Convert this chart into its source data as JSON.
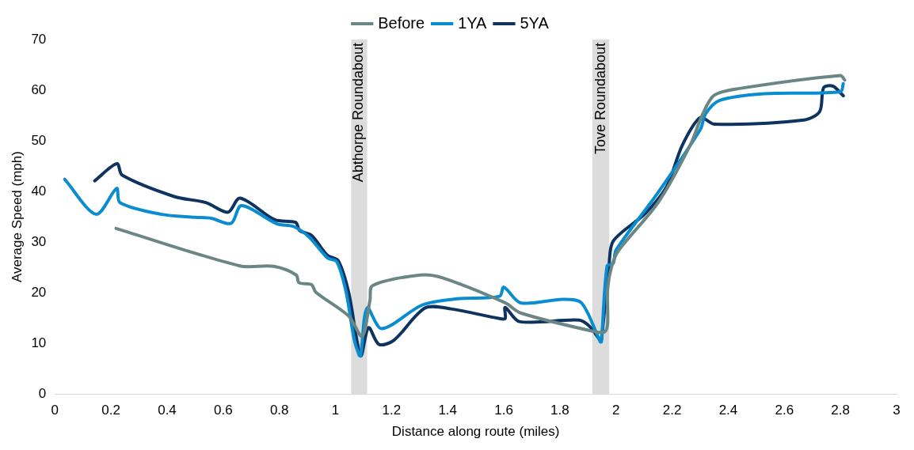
{
  "chart_data": {
    "type": "line",
    "xlabel": "Distance along route (miles)",
    "ylabel": "Average Speed (mph)",
    "xlim": [
      0,
      3
    ],
    "xticks": [
      0,
      0.2,
      0.4,
      0.6,
      0.8,
      1,
      1.2,
      1.4,
      1.6,
      1.8,
      2,
      2.2,
      2.4,
      2.6,
      2.8,
      3
    ],
    "ylim": [
      0,
      70
    ],
    "yticks": [
      0,
      10,
      20,
      30,
      40,
      50,
      60,
      70
    ],
    "grid": false,
    "legend": "top",
    "marker": "none",
    "line_style": "solid",
    "bands": [
      {
        "axis": "x",
        "from": 1.056,
        "to": 1.113,
        "label": "Abthorpe Roundabout",
        "color": "#dcdcdc"
      },
      {
        "axis": "x",
        "from": 1.916,
        "to": 1.976,
        "label": "Tove Roundabout",
        "color": "#dcdcdc"
      }
    ],
    "series": [
      {
        "name": "Before",
        "color": "#6b8785",
        "x": [
          0.218,
          0.66,
          0.78,
          0.86,
          0.87,
          0.915,
          0.93,
          1.047,
          1.095,
          1.123,
          1.132,
          1.302,
          1.378,
          1.605,
          1.66,
          1.925,
          1.96,
          1.97,
          1.97,
          1.985,
          2.01,
          2.15,
          2.264,
          2.31,
          2.35,
          2.435,
          2.8,
          2.815
        ],
        "values": [
          32.7,
          25.3,
          25.2,
          23.5,
          22,
          21.6,
          20.1,
          15.4,
          11.4,
          18.5,
          21.4,
          23.5,
          23,
          18,
          16,
          12.3,
          12.3,
          13.9,
          20.7,
          25.3,
          28.4,
          37.8,
          49.1,
          55.4,
          59,
          60.3,
          62.9,
          62
        ]
      },
      {
        "name": "1YA",
        "color": "#0a8dd0",
        "x": [
          0.035,
          0.147,
          0.22,
          0.232,
          0.377,
          0.5,
          0.557,
          0.628,
          0.665,
          0.792,
          0.85,
          0.906,
          0.971,
          1.005,
          1.038,
          1.067,
          1.085,
          1.09,
          1.113,
          1.165,
          1.31,
          1.434,
          1.585,
          1.6,
          1.66,
          1.81,
          1.877,
          1.944,
          1.948,
          1.968,
          1.99,
          2,
          2.15,
          2.3,
          2.32,
          2.37,
          2.528,
          2.8,
          2.81
        ],
        "values": [
          42.4,
          35.5,
          40.6,
          37.8,
          35.5,
          34.9,
          34.7,
          33.7,
          37.2,
          33.6,
          33.1,
          31,
          26.9,
          26.1,
          20.1,
          10.7,
          7.6,
          7.5,
          17,
          12.9,
          17.6,
          18.8,
          19.3,
          21.1,
          18,
          18.7,
          18,
          10.3,
          10.3,
          25.3,
          25.8,
          28.4,
          39.8,
          52.2,
          55.4,
          58,
          59.3,
          59.7,
          61.3
        ]
      },
      {
        "name": "5YA",
        "color": "#0e3361",
        "x": [
          0.142,
          0.221,
          0.24,
          0.425,
          0.538,
          0.617,
          0.66,
          0.784,
          0.858,
          0.872,
          0.915,
          0.971,
          1.01,
          1.047,
          1.09,
          1.118,
          1.155,
          1.208,
          1.32,
          1.413,
          1.585,
          1.605,
          1.605,
          1.656,
          1.868,
          1.905,
          1.944,
          1.948,
          1.975,
          1.99,
          2.103,
          2.18,
          2.236,
          2.3,
          2.35,
          2.67,
          2.726,
          2.74,
          2.773,
          2.81
        ],
        "values": [
          42.1,
          45.5,
          43.2,
          39,
          37.8,
          35.9,
          38.7,
          34.4,
          33.9,
          32.3,
          31.3,
          27.4,
          26.3,
          20.1,
          7.6,
          13.1,
          9.8,
          10.6,
          17,
          16.8,
          14.9,
          14.9,
          17.1,
          14.3,
          14.6,
          13.4,
          10.6,
          10.7,
          25.3,
          30.2,
          35.6,
          40.9,
          49.1,
          54.6,
          53.3,
          54.1,
          55.8,
          60.5,
          60.8,
          58.9
        ]
      }
    ]
  }
}
